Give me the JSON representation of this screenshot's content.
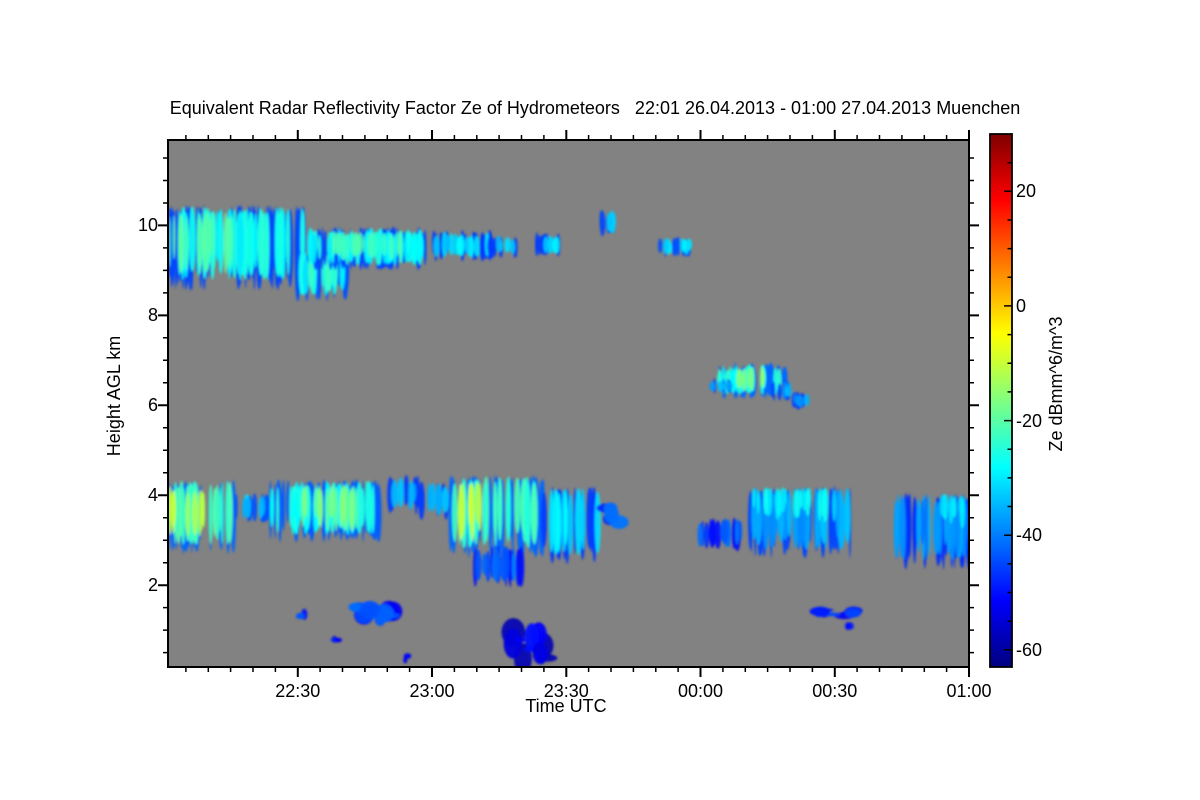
{
  "title": "Equivalent Radar Reflectivity Factor Ze of Hydrometeors   22:01 26.04.2013 - 01:00 27.04.2013 Muenchen",
  "colors": {
    "page_background": "#ffffff",
    "plot_background": "#828282",
    "frame": "#000000",
    "text": "#000000"
  },
  "chart_data": {
    "type": "heatmap",
    "title": "Equivalent Radar Reflectivity Factor Ze of Hydrometeors   22:01 26.04.2013 - 01:00 27.04.2013 Muenchen",
    "station": "Muenchen",
    "xlabel": "Time UTC",
    "ylabel": "Height AGL km",
    "colorbar_label": "Ze dBmm^6/m^3",
    "x_range": {
      "start_time": "22:01",
      "start_date": "26.04.2013",
      "end_time": "01:00",
      "end_date": "27.04.2013",
      "minutes_total": 179
    },
    "y_range_km": [
      0.18,
      11.9
    ],
    "grid": false,
    "x_ticks": [
      {
        "label": "22:30",
        "min": 29
      },
      {
        "label": "23:00",
        "min": 59
      },
      {
        "label": "23:30",
        "min": 89
      },
      {
        "label": "00:00",
        "min": 119
      },
      {
        "label": "00:30",
        "min": 149
      },
      {
        "label": "01:00",
        "min": 179
      }
    ],
    "x_minor_every_min": 5,
    "y_ticks": [
      {
        "label": "2",
        "km": 2
      },
      {
        "label": "4",
        "km": 4
      },
      {
        "label": "6",
        "km": 6
      },
      {
        "label": "8",
        "km": 8
      },
      {
        "label": "10",
        "km": 10
      }
    ],
    "y_minor_every_km": 0.5,
    "colorbar": {
      "min_dbze": -63,
      "max_dbze": 30,
      "colormap": "jet",
      "ticks": [
        {
          "label": "20",
          "value": 20
        },
        {
          "label": "0",
          "value": 0
        },
        {
          "label": "-20",
          "value": -20
        },
        {
          "label": "-40",
          "value": -40
        },
        {
          "label": "-60",
          "value": -60
        }
      ],
      "minor_tick_values": [
        25,
        15,
        10,
        5,
        -5,
        -10,
        -15,
        -25,
        -30,
        -35,
        -45,
        -50,
        -55
      ]
    },
    "echo_regions": [
      {
        "name": "cirrus-main-deck",
        "desc": "dense cirrus deck, 22:01-22:32, 8.6-10.5 km, cyan with greenish core",
        "type": "streaks",
        "t_min": [
          0,
          31
        ],
        "height_km": [
          8.55,
          10.45
        ],
        "dbze": {
          "edge": -45,
          "mid": -27,
          "core": -21
        },
        "core": {
          "c": 0.18,
          "w": 0.55,
          "at": "full"
        },
        "density": 1.25
      },
      {
        "name": "cirrus-fall-lobe",
        "desc": "descending cirrus lobe near 22:32 down to 8.3 km",
        "type": "streaks",
        "t_min": [
          29,
          40
        ],
        "height_km": [
          8.3,
          9.45
        ],
        "dbze": {
          "edge": -44,
          "mid": -28,
          "core": -23
        },
        "core": {
          "c": 0.5,
          "w": 0.5,
          "at": "full"
        },
        "density": 1.1
      },
      {
        "name": "cirrus-band",
        "desc": "thinner cirrus band 22:32-22:59 near 9-10 km",
        "type": "streaks",
        "t_min": [
          31,
          58
        ],
        "height_km": [
          9.0,
          9.97
        ],
        "dbze": {
          "edge": -45,
          "mid": -28,
          "core": -22
        },
        "core": {
          "c": 0.5,
          "w": 0.55,
          "at": "full"
        },
        "density": 1.15
      },
      {
        "name": "cirrus-fragments-1",
        "desc": "broken cirrus 22:59-23:13",
        "type": "streaks",
        "t_min": [
          58,
          72
        ],
        "height_km": [
          9.2,
          9.9
        ],
        "dbze": {
          "edge": -46,
          "mid": -31
        },
        "density": 0.75
      },
      {
        "name": "cirrus-fragments-2",
        "desc": "broken cirrus 23:13-23:20",
        "type": "streaks",
        "t_min": [
          72,
          79
        ],
        "height_km": [
          9.25,
          9.8
        ],
        "dbze": {
          "edge": -46,
          "mid": -33
        },
        "density": 0.55
      },
      {
        "name": "cirrus-fragments-3",
        "desc": "broken cirrus 23:21-23:29",
        "type": "streaks",
        "t_min": [
          80.5,
          88
        ],
        "height_km": [
          9.3,
          9.85
        ],
        "dbze": {
          "edge": -46,
          "mid": -31
        },
        "density": 0.6
      },
      {
        "name": "cirrus-patch-small",
        "desc": "small patch ~23:38 near 10 km",
        "type": "streaks",
        "t_min": [
          96,
          100
        ],
        "height_km": [
          9.75,
          10.35
        ],
        "dbze": {
          "edge": -45,
          "mid": -33
        },
        "density": 0.8
      },
      {
        "name": "cirrus-patch-2",
        "desc": "small patch ~23:53 near 9.5 km",
        "type": "streaks",
        "t_min": [
          110,
          117.5
        ],
        "height_km": [
          9.3,
          9.75
        ],
        "dbze": {
          "edge": -44,
          "mid": -31
        },
        "density": 0.9
      },
      {
        "name": "midlevel-cloud-body",
        "desc": "mid-level cloud 00:04-00:19 at 6.2-7 km with bright core",
        "type": "streaks",
        "t_min": [
          122.5,
          138
        ],
        "height_km": [
          6.15,
          6.95
        ],
        "dbze": {
          "edge": -42,
          "mid": -26,
          "core": -16
        },
        "core": {
          "c": 0.5,
          "w": 0.35,
          "at": "full"
        },
        "density": 1.1
      },
      {
        "name": "midlevel-left-tail",
        "desc": "left tail of mid-level cloud",
        "type": "streaks",
        "t_min": [
          120.5,
          126
        ],
        "height_km": [
          6.25,
          6.6
        ],
        "dbze": {
          "edge": -45,
          "mid": -36
        },
        "density": 0.7
      },
      {
        "name": "midlevel-right-tail-1",
        "desc": "right tail descending",
        "type": "streaks",
        "t_min": [
          135,
          140
        ],
        "height_km": [
          6.1,
          6.55
        ],
        "dbze": {
          "edge": -45,
          "mid": -36
        },
        "density": 0.8
      },
      {
        "name": "midlevel-right-tail-2",
        "desc": "right tail end near 6 km ~00:24",
        "type": "streaks",
        "t_min": [
          139,
          143.5
        ],
        "height_km": [
          5.9,
          6.3
        ],
        "dbze": {
          "edge": -46,
          "mid": -38
        },
        "density": 0.7
      },
      {
        "name": "lowcloud-west-bright",
        "desc": "low cloud 22:01-22:16, 2.7-4.35 km, yellow-green core",
        "type": "streaks",
        "t_min": [
          0,
          15
        ],
        "height_km": [
          2.7,
          4.35
        ],
        "dbze": {
          "edge": -42,
          "mid": -22,
          "core": -11
        },
        "core": {
          "c": 0.25,
          "w": 0.6,
          "at": "full"
        },
        "density": 1.2
      },
      {
        "name": "lowcloud-bridge",
        "desc": "thin connection 22:16-22:24",
        "type": "streaks",
        "t_min": [
          15,
          22.5
        ],
        "height_km": [
          3.4,
          4.05
        ],
        "dbze": {
          "edge": -44,
          "mid": -33
        },
        "density": 0.9
      },
      {
        "name": "lowcloud-mid-band",
        "desc": "low cloud band 22:24-22:49, 3-4.35 km",
        "type": "streaks",
        "t_min": [
          22.5,
          48
        ],
        "height_km": [
          2.95,
          4.35
        ],
        "dbze": {
          "edge": -43,
          "mid": -26,
          "core": -18
        },
        "core": {
          "c": 0.55,
          "w": 0.5,
          "at": "full"
        },
        "density": 1.15
      },
      {
        "name": "lowcloud-fragments-1",
        "desc": "fragments 22:50-22:57 near 4 km",
        "type": "streaks",
        "t_min": [
          49.5,
          56
        ],
        "height_km": [
          3.55,
          4.45
        ],
        "dbze": {
          "edge": -46,
          "mid": -36
        },
        "density": 0.7
      },
      {
        "name": "lowcloud-fragments-2",
        "desc": "fragments 22:58-23:03",
        "type": "streaks",
        "t_min": [
          56.5,
          62.5
        ],
        "height_km": [
          3.45,
          4.3
        ],
        "dbze": {
          "edge": -46,
          "mid": -34
        },
        "density": 0.7
      },
      {
        "name": "convective-cell",
        "desc": "deep cell 23:04-23:25, bright streak, tops 4.45 km",
        "type": "streaks",
        "t_min": [
          63,
          84
        ],
        "height_km": [
          2.6,
          4.45
        ],
        "dbze": {
          "edge": -42,
          "mid": -24,
          "core": -11
        },
        "core": {
          "c": 0.2,
          "w": 0.28,
          "at": "full"
        },
        "density": 1.2
      },
      {
        "name": "cell-virga-fingers",
        "desc": "virga fingers below cell down to 2 km",
        "type": "streaks",
        "t_min": [
          67,
          79
        ],
        "height_km": [
          1.95,
          2.9
        ],
        "dbze": {
          "edge": -50,
          "mid": -42
        },
        "density": 0.65
      },
      {
        "name": "fingers-east-of-cell",
        "desc": "columns 23:25-23:38, 2.5-4.2 km",
        "type": "streaks",
        "t_min": [
          84,
          97
        ],
        "height_km": [
          2.45,
          4.2
        ],
        "dbze": {
          "edge": -46,
          "mid": -31
        },
        "density": 0.8
      },
      {
        "name": "echo-dots",
        "desc": "small dots 23:39-23:45 near 3.5 km",
        "type": "blob",
        "t_min": [
          97.5,
          104
        ],
        "height_km": [
          3.3,
          3.85
        ],
        "dbze": {
          "edge": -48,
          "mid": -40
        },
        "density": 0.6
      },
      {
        "name": "sparse-strands",
        "desc": "thin blue strands 00:00-00:11, ~3 km",
        "type": "streaks",
        "t_min": [
          118.5,
          130
        ],
        "height_km": [
          2.75,
          3.5
        ],
        "dbze": {
          "edge": -50,
          "mid": -43
        },
        "density": 0.5
      },
      {
        "name": "lowcloud-east-1",
        "desc": "blue columns with cyan tops 00:11-00:33, 2.6-4.2 km",
        "type": "streaks",
        "t_min": [
          130,
          152.5
        ],
        "height_km": [
          2.6,
          4.2
        ],
        "dbze": {
          "edge": -45,
          "mid": -36,
          "core": -29
        },
        "core": {
          "c": 0.45,
          "w": 0.85,
          "at": "top"
        },
        "density": 1.0
      },
      {
        "name": "lowcloud-east-2",
        "desc": "fan of blue wisps 00:42-01:00, 2.4-4 km",
        "type": "streaks",
        "t_min": [
          161,
          179
        ],
        "height_km": [
          2.35,
          4.05
        ],
        "dbze": {
          "edge": -47,
          "mid": -38,
          "core": -29
        },
        "core": {
          "c": 0.82,
          "w": 0.3,
          "at": "top"
        },
        "density": 1.0
      },
      {
        "name": "shallow-blob-1",
        "desc": "tiny echo ~22:31 at 1.3 km",
        "type": "blob",
        "t_min": [
          29.2,
          30.6
        ],
        "height_km": [
          1.25,
          1.45
        ],
        "dbze": {
          "edge": -50,
          "mid": -45
        },
        "density": 1.0
      },
      {
        "name": "shallow-blob-2",
        "desc": "echoes 22:42-22:51 near 1.4 km",
        "type": "blob",
        "t_min": [
          41,
          50.5
        ],
        "height_km": [
          1.15,
          1.62
        ],
        "dbze": {
          "edge": -52,
          "mid": -44
        },
        "density": 1.0
      },
      {
        "name": "shallow-dot-1",
        "desc": "dot ~22:38 at 0.8 km",
        "type": "blob",
        "t_min": [
          37,
          38.2
        ],
        "height_km": [
          0.74,
          0.88
        ],
        "dbze": {
          "edge": -55,
          "mid": -50
        },
        "density": 1.0
      },
      {
        "name": "boundary-layer-blob",
        "desc": "dark blue cluster 23:18-23:26 at 0.3-1 km",
        "type": "blob",
        "t_min": [
          76.5,
          85.5
        ],
        "height_km": [
          0.28,
          1.05
        ],
        "dbze": {
          "edge": -58,
          "mid": -52
        },
        "density": 1.3
      },
      {
        "name": "shallow-dash",
        "desc": "horizontal dash 00:27-00:34 at 1.4 km",
        "type": "blob",
        "t_min": [
          145.5,
          153.5
        ],
        "height_km": [
          1.3,
          1.48
        ],
        "dbze": {
          "edge": -52,
          "mid": -47
        },
        "density": 1.0
      },
      {
        "name": "shallow-dot-2",
        "desc": "dot ~00:33 at 1.1 km",
        "type": "blob",
        "t_min": [
          151.5,
          153.2
        ],
        "height_km": [
          1.02,
          1.16
        ],
        "dbze": {
          "mid": -50
        },
        "density": 1.0
      },
      {
        "name": "shallow-dot-3",
        "desc": "dot ~22:54 at 0.4 km",
        "type": "blob",
        "t_min": [
          52.8,
          54
        ],
        "height_km": [
          0.3,
          0.46
        ],
        "dbze": {
          "mid": -52
        },
        "density": 1.0
      }
    ]
  }
}
